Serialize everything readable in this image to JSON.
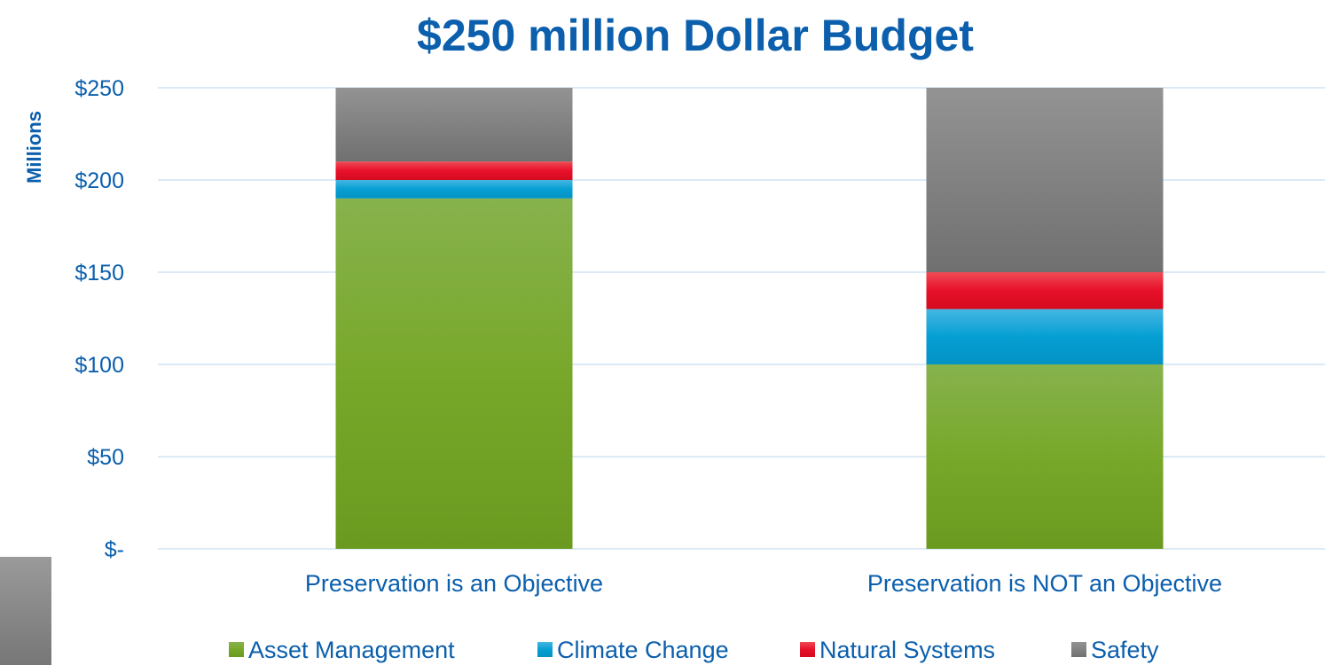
{
  "chart_data": {
    "type": "bar",
    "stacked": true,
    "title": "$250 million Dollar Budget",
    "ylabel": "Millions",
    "xlabel": "",
    "ylim": [
      0,
      250
    ],
    "yticks": [
      0,
      50,
      100,
      150,
      200,
      250
    ],
    "ytick_labels": [
      "$-",
      "$50",
      "$100",
      "$150",
      "$200",
      "$250"
    ],
    "categories": [
      "Preservation is an Objective",
      "Preservation is NOT an Objective"
    ],
    "series": [
      {
        "name": "Asset Management",
        "values": [
          190,
          100
        ],
        "color": "#76a82b"
      },
      {
        "name": "Climate Change",
        "values": [
          10,
          30
        ],
        "color": "#1aa3d6"
      },
      {
        "name": "Natural Systems",
        "values": [
          10,
          20
        ],
        "color": "#e8112d"
      },
      {
        "name": "Safety",
        "values": [
          40,
          100
        ],
        "color": "#808080"
      }
    ],
    "grid": true,
    "legend_position": "bottom"
  }
}
